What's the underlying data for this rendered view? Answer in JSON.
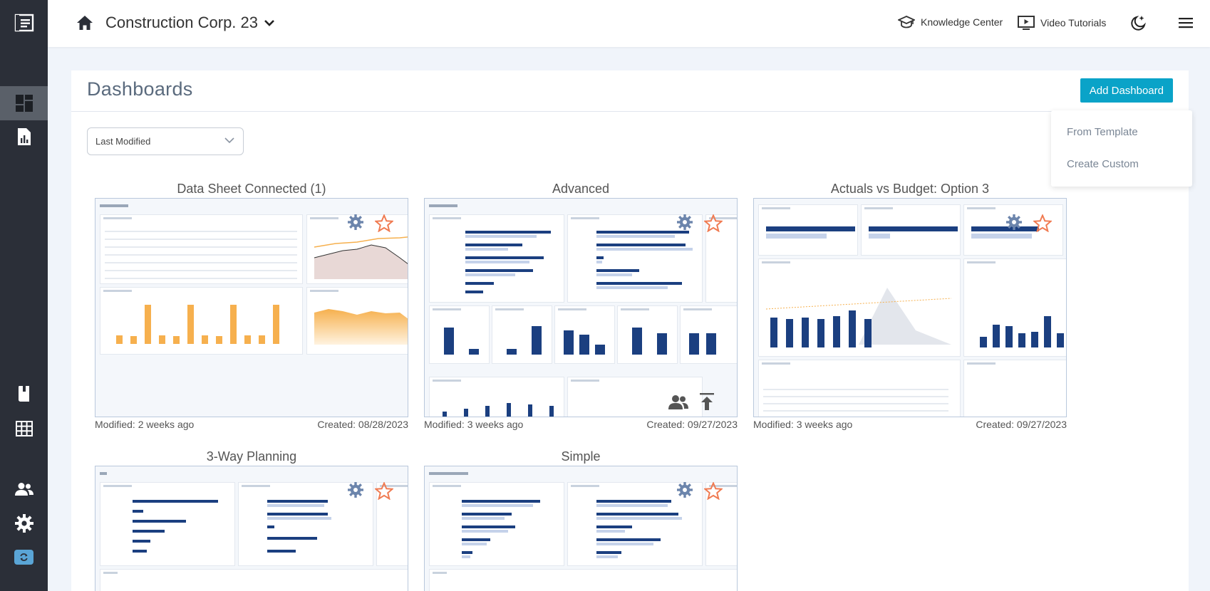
{
  "app": {
    "company": "Construction Corp. 23",
    "links": {
      "knowledge": "Knowledge Center",
      "tutorials": "Video Tutorials"
    }
  },
  "page": {
    "title": "Dashboards",
    "add_button": "Add Dashboard",
    "add_menu": [
      "From Template",
      "Create Custom"
    ],
    "sort_value": "Last Modified"
  },
  "colors": {
    "accent": "#0aa3c8",
    "sidebar": "#2b2f38",
    "star": "#f07b52",
    "gear": "#6c85ac",
    "bar_primary": "#1b3f80",
    "bar_orange": "#f6b04e"
  },
  "cards": [
    {
      "title": "Data Sheet Connected (1)",
      "modified": "Modified: 2 weeks ago",
      "created": "Created: 08/28/2023"
    },
    {
      "title": "Advanced",
      "modified": "Modified: 3 weeks ago",
      "created": "Created: 09/27/2023"
    },
    {
      "title": "Actuals vs Budget: Option 3",
      "modified": "Modified: 3 weeks ago",
      "created": "Created: 09/27/2023"
    },
    {
      "title": "3-Way Planning"
    },
    {
      "title": "Simple"
    }
  ],
  "icons": {
    "sidebar": [
      "app-logo-icon",
      "dashboards-icon",
      "reports-icon",
      "book-icon",
      "grid-icon",
      "users-icon",
      "settings-icon",
      "sync-icon"
    ],
    "top": [
      "home-icon",
      "chevron-down-icon",
      "graduation-cap-icon",
      "video-icon",
      "dark-mode-icon",
      "hamburger-menu-icon"
    ],
    "card": [
      "gear-icon",
      "star-icon",
      "team-icon",
      "share-icon"
    ]
  }
}
